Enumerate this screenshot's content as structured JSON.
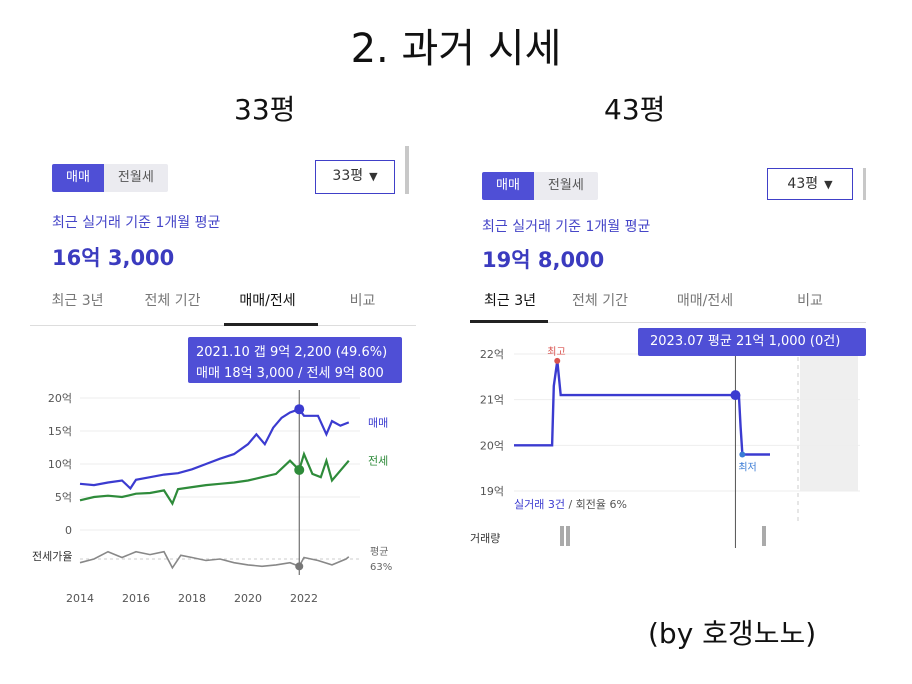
{
  "title": "2. 과거 시세",
  "credit": "(by 호갱노노)",
  "colors": {
    "accent": "#4f4fd6",
    "sale_line": "#3b3bd0",
    "jeonse_line": "#2e8b3a",
    "ratio_line": "#888888"
  },
  "left": {
    "size_label": "33평",
    "seg_sale": "매매",
    "seg_rent": "전월세",
    "dropdown": "33평",
    "subtitle": "최근 실거래 기준 1개월 평균",
    "price": "16억 3,000",
    "tabs": [
      "최근 3년",
      "전체 기간",
      "매매/전세",
      "비교"
    ],
    "active_tab": 2,
    "tooltip_line1": "2021.10  갭 9억 2,200 (49.6%)",
    "tooltip_line2": "매매 18억 3,000 / 전세 9억 800",
    "ratio_label": "전세가율",
    "avg_label": "평균",
    "avg_value": "63%"
  },
  "right": {
    "size_label": "43평",
    "seg_sale": "매매",
    "seg_rent": "전월세",
    "dropdown": "43평",
    "subtitle": "최근 실거래 기준 1개월 평균",
    "price": "19억 8,000",
    "tabs": [
      "최근 3년",
      "전체 기간",
      "매매/전세",
      "비교"
    ],
    "active_tab": 0,
    "tooltip": "2023.07 평균 21억 1,000 (0건)",
    "high_label": "최고",
    "low_label": "최저",
    "footer_prefix": "실거래 3건",
    "footer_suffix": " / 회전율 6%",
    "volume_label": "거래량"
  },
  "chart_data": [
    {
      "type": "line",
      "title": "",
      "y_ticks": [
        "20억",
        "15억",
        "10억",
        "5억",
        "0"
      ],
      "ylim": [
        0,
        20
      ],
      "x_ticks": [
        "2014",
        "2016",
        "2018",
        "2020",
        "2022"
      ],
      "xlim": [
        2014,
        2024
      ],
      "series": [
        {
          "name": "매매",
          "x": [
            2014.0,
            2014.5,
            2015.0,
            2015.5,
            2015.8,
            2016.0,
            2016.5,
            2017.0,
            2017.5,
            2018.0,
            2018.5,
            2019.0,
            2019.5,
            2020.0,
            2020.3,
            2020.6,
            2020.9,
            2021.2,
            2021.5,
            2021.83,
            2022.0,
            2022.5,
            2022.8,
            2023.0,
            2023.3,
            2023.6
          ],
          "values": [
            7,
            6.8,
            7.2,
            7.5,
            6.3,
            7.6,
            8.0,
            8.4,
            8.6,
            9.2,
            10,
            10.8,
            11.5,
            13,
            14.5,
            13,
            15.5,
            17,
            17.8,
            18.3,
            17.3,
            17.3,
            14.5,
            16.5,
            15.8,
            16.3
          ]
        },
        {
          "name": "전세",
          "x": [
            2014.0,
            2014.5,
            2015.0,
            2015.5,
            2016.0,
            2016.5,
            2017.0,
            2017.3,
            2017.5,
            2018.0,
            2018.5,
            2019.0,
            2019.5,
            2020.0,
            2020.5,
            2021.0,
            2021.5,
            2021.83,
            2022.0,
            2022.3,
            2022.6,
            2022.8,
            2023.0,
            2023.3,
            2023.6
          ],
          "values": [
            4.5,
            5.0,
            5.2,
            5.0,
            5.5,
            5.6,
            6.0,
            4.0,
            6.2,
            6.5,
            6.8,
            7.0,
            7.2,
            7.5,
            8.0,
            8.5,
            10.5,
            9.1,
            11.5,
            8.5,
            8.0,
            10.5,
            7.5,
            9.0,
            10.5
          ]
        },
        {
          "name": "전세가율",
          "x": [
            2014.0,
            2014.5,
            2015.0,
            2015.5,
            2016.0,
            2016.5,
            2017.0,
            2017.3,
            2017.6,
            2018.0,
            2018.5,
            2019.0,
            2019.5,
            2020.0,
            2020.5,
            2021.0,
            2021.5,
            2021.83,
            2022.0,
            2022.5,
            2023.0,
            2023.5,
            2023.6
          ],
          "values": [
            0.55,
            0.6,
            0.7,
            0.62,
            0.7,
            0.66,
            0.7,
            0.48,
            0.65,
            0.62,
            0.58,
            0.6,
            0.55,
            0.52,
            0.5,
            0.52,
            0.55,
            0.5,
            0.62,
            0.58,
            0.52,
            0.6,
            0.63
          ]
        }
      ],
      "highlight_x": 2021.83
    },
    {
      "type": "line",
      "title": "",
      "y_ticks": [
        "22억",
        "21억",
        "20억",
        "19억"
      ],
      "ylim": [
        19,
        22
      ],
      "x_ticks": [],
      "series": [
        {
          "name": "",
          "x": [
            0,
            0.11,
            0.115,
            0.125,
            0.135,
            0.64,
            0.65,
            0.655,
            0.66,
            0.74
          ],
          "values": [
            20,
            20,
            21.3,
            21.85,
            21.1,
            21.1,
            21.1,
            20.4,
            19.8,
            19.8
          ]
        }
      ],
      "highlight_x": 0.64,
      "high_marker": {
        "x": 0.125,
        "value": 21.85
      },
      "low_marker": {
        "x": 0.66,
        "value": 19.8
      }
    }
  ]
}
